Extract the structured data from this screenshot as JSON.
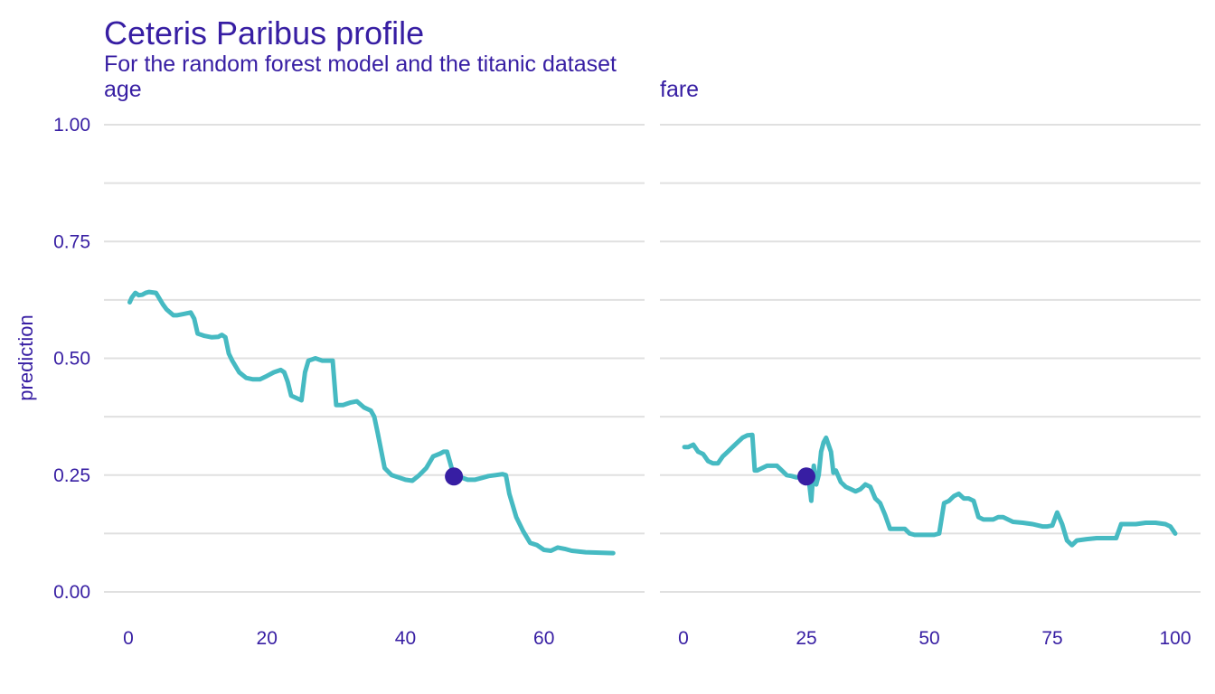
{
  "chart_data": {
    "type": "line",
    "title": "Ceteris Paribus profile",
    "subtitle": "For the random forest model and the titanic dataset",
    "ylabel": "prediction",
    "ylim": [
      0,
      1
    ],
    "y_ticks": [
      0,
      0.25,
      0.5,
      0.75,
      1.0
    ],
    "y_tick_labels": [
      "0.00",
      "0.25",
      "0.50",
      "0.75",
      "1.00"
    ],
    "grid": true,
    "line_color": "#46bac2",
    "point_color": "#371ea3",
    "text_color": "#371ea3",
    "panels": [
      {
        "name": "age",
        "xlim": [
          0,
          71
        ],
        "x_ticks": [
          0,
          20,
          40,
          60
        ],
        "x_tick_labels": [
          "0",
          "20",
          "40",
          "60"
        ],
        "observation": {
          "x": 47,
          "y": 0.247
        },
        "x": [
          0.2,
          0.5,
          1.0,
          1.5,
          2.0,
          2.5,
          3.0,
          4.0,
          5.0,
          5.5,
          6.5,
          7.0,
          8.0,
          9.0,
          9.5,
          10.0,
          11.0,
          12.0,
          13.0,
          13.5,
          14.0,
          14.5,
          15.0,
          16.0,
          17.0,
          18.0,
          19.0,
          20.0,
          21.0,
          22.0,
          22.5,
          23.0,
          23.5,
          25.0,
          25.5,
          26.0,
          27.0,
          28.0,
          29.0,
          29.5,
          30.0,
          31.0,
          32.0,
          33.0,
          34.0,
          35.0,
          35.5,
          36.0,
          37.0,
          38.0,
          39.0,
          40.0,
          41.0,
          42.0,
          43.0,
          44.0,
          45.0,
          45.5,
          46.0,
          47.0,
          48.0,
          49.0,
          50.0,
          51.0,
          52.0,
          53.0,
          54.0,
          54.5,
          55.0,
          56.0,
          57.0,
          58.0,
          59.0,
          60.0,
          61.0,
          62.0,
          63.0,
          64.0,
          66.0,
          68.0,
          70.0
        ],
        "y": [
          0.62,
          0.63,
          0.64,
          0.635,
          0.636,
          0.64,
          0.642,
          0.64,
          0.615,
          0.605,
          0.592,
          0.592,
          0.595,
          0.598,
          0.585,
          0.553,
          0.548,
          0.545,
          0.546,
          0.55,
          0.545,
          0.51,
          0.495,
          0.47,
          0.458,
          0.455,
          0.455,
          0.462,
          0.47,
          0.475,
          0.47,
          0.45,
          0.42,
          0.41,
          0.47,
          0.495,
          0.5,
          0.495,
          0.495,
          0.495,
          0.4,
          0.4,
          0.405,
          0.408,
          0.395,
          0.388,
          0.375,
          0.34,
          0.265,
          0.25,
          0.245,
          0.24,
          0.238,
          0.25,
          0.265,
          0.29,
          0.296,
          0.3,
          0.3,
          0.248,
          0.245,
          0.24,
          0.24,
          0.244,
          0.248,
          0.25,
          0.252,
          0.25,
          0.21,
          0.16,
          0.13,
          0.105,
          0.1,
          0.09,
          0.088,
          0.095,
          0.092,
          0.088,
          0.085,
          0.084,
          0.083
        ]
      },
      {
        "name": "fare",
        "xlim": [
          0,
          100
        ],
        "x_ticks": [
          0,
          25,
          50,
          75,
          100
        ],
        "x_tick_labels": [
          "0",
          "25",
          "50",
          "75",
          "100"
        ],
        "observation": {
          "x": 25,
          "y": 0.247
        },
        "x": [
          0.2,
          1.0,
          2.0,
          3.0,
          4.0,
          5.0,
          6.0,
          7.0,
          8.0,
          9.0,
          10.0,
          11.0,
          12.0,
          13.0,
          14.0,
          14.5,
          15.0,
          16.0,
          17.0,
          18.0,
          19.0,
          20.0,
          21.0,
          22.0,
          23.0,
          24.0,
          25.0,
          25.5,
          26.0,
          26.5,
          27.0,
          27.5,
          28.0,
          28.5,
          29.0,
          30.0,
          30.5,
          31.0,
          32.0,
          33.0,
          34.0,
          35.0,
          36.0,
          37.0,
          38.0,
          39.0,
          40.0,
          41.0,
          42.0,
          43.0,
          44.0,
          45.0,
          46.0,
          47.0,
          48.0,
          49.0,
          50.0,
          51.0,
          52.0,
          53.0,
          54.0,
          55.0,
          56.0,
          57.0,
          58.0,
          59.0,
          60.0,
          61.0,
          62.0,
          63.0,
          64.0,
          65.0,
          67.0,
          69.0,
          71.0,
          73.0,
          74.0,
          75.0,
          76.0,
          77.0,
          78.0,
          79.0,
          80.0,
          82.0,
          84.0,
          86.0,
          88.0,
          89.0,
          90.0,
          92.0,
          94.0,
          96.0,
          98.0,
          99.0,
          100.0
        ],
        "y": [
          0.31,
          0.31,
          0.315,
          0.3,
          0.295,
          0.28,
          0.275,
          0.275,
          0.29,
          0.3,
          0.31,
          0.32,
          0.33,
          0.335,
          0.336,
          0.26,
          0.26,
          0.265,
          0.27,
          0.27,
          0.27,
          0.26,
          0.25,
          0.248,
          0.245,
          0.245,
          0.245,
          0.24,
          0.195,
          0.27,
          0.23,
          0.25,
          0.3,
          0.32,
          0.33,
          0.3,
          0.255,
          0.26,
          0.235,
          0.225,
          0.22,
          0.215,
          0.22,
          0.23,
          0.225,
          0.2,
          0.19,
          0.165,
          0.135,
          0.135,
          0.135,
          0.135,
          0.125,
          0.122,
          0.122,
          0.122,
          0.122,
          0.122,
          0.125,
          0.19,
          0.195,
          0.205,
          0.21,
          0.2,
          0.2,
          0.195,
          0.16,
          0.155,
          0.155,
          0.155,
          0.16,
          0.16,
          0.15,
          0.148,
          0.145,
          0.14,
          0.14,
          0.142,
          0.17,
          0.145,
          0.11,
          0.1,
          0.11,
          0.113,
          0.115,
          0.115,
          0.115,
          0.145,
          0.145,
          0.145,
          0.148,
          0.148,
          0.145,
          0.14,
          0.125
        ]
      }
    ]
  }
}
